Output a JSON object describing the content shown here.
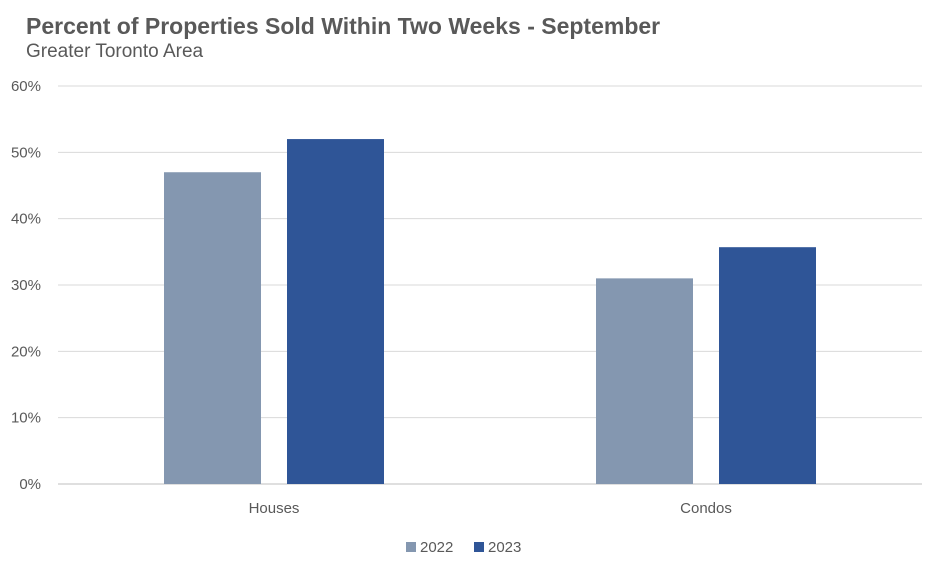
{
  "chart_data": {
    "type": "bar",
    "title": "Percent of Properties Sold Within Two Weeks - September",
    "subtitle": "Greater Toronto Area",
    "categories": [
      "Houses",
      "Condos"
    ],
    "series": [
      {
        "name": "2022",
        "values": [
          47,
          31
        ],
        "color": "#8497B0"
      },
      {
        "name": "2023",
        "values": [
          52,
          35.7
        ],
        "color": "#2F5597"
      }
    ],
    "ylim": [
      0,
      60
    ],
    "yticks": [
      0,
      10,
      20,
      30,
      40,
      50,
      60
    ],
    "ytick_labels": [
      "0%",
      "10%",
      "20%",
      "30%",
      "40%",
      "50%",
      "60%"
    ],
    "xlabel": "",
    "ylabel": "",
    "grid": true,
    "legend_position": "bottom"
  }
}
